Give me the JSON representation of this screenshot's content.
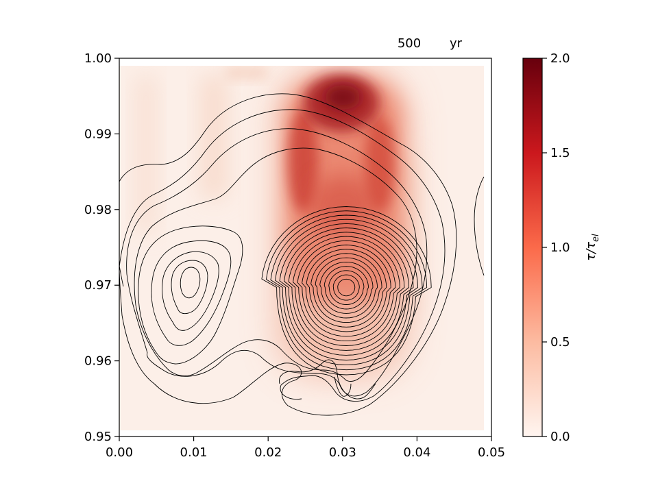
{
  "chart_data": {
    "type": "heatmap",
    "time_label": {
      "value": "500",
      "unit": "yr"
    },
    "x": {
      "range": [
        0.0,
        0.05
      ],
      "ticks": [
        "0.00",
        "0.01",
        "0.02",
        "0.03",
        "0.04",
        "0.05"
      ]
    },
    "y": {
      "range": [
        0.95,
        1.0
      ],
      "ticks": [
        "0.95",
        "0.96",
        "0.97",
        "0.98",
        "0.99",
        "1.00"
      ]
    },
    "colorbar": {
      "label": "τ/τ_el",
      "label_main": "τ/τ",
      "label_sub": "el",
      "range": [
        0.0,
        2.0
      ],
      "ticks": [
        "0.0",
        "0.5",
        "1.0",
        "1.5",
        "2.0"
      ],
      "colormap": "Reds",
      "colors": [
        "#fff5f0",
        "#fcbba1",
        "#fb6a4a",
        "#cb181d",
        "#67000d"
      ]
    },
    "data_extent": {
      "x": [
        0.0,
        0.049
      ],
      "y": [
        0.951,
        0.9999
      ]
    },
    "heat_peaks": [
      {
        "x": 0.0302,
        "y": 0.9955,
        "value": 1.8
      },
      {
        "x": 0.0252,
        "y": 0.987,
        "value": 1.1
      },
      {
        "x": 0.0352,
        "y": 0.986,
        "value": 1.0
      },
      {
        "x": 0.0302,
        "y": 0.979,
        "value": 0.9
      }
    ],
    "contours": {
      "color": "#000000",
      "vortices": [
        {
          "name": "left",
          "center": [
            0.0093,
            0.9715
          ],
          "nested_levels": 5
        },
        {
          "name": "right",
          "center": [
            0.0305,
            0.9697
          ],
          "nested_levels": 18
        }
      ]
    }
  }
}
